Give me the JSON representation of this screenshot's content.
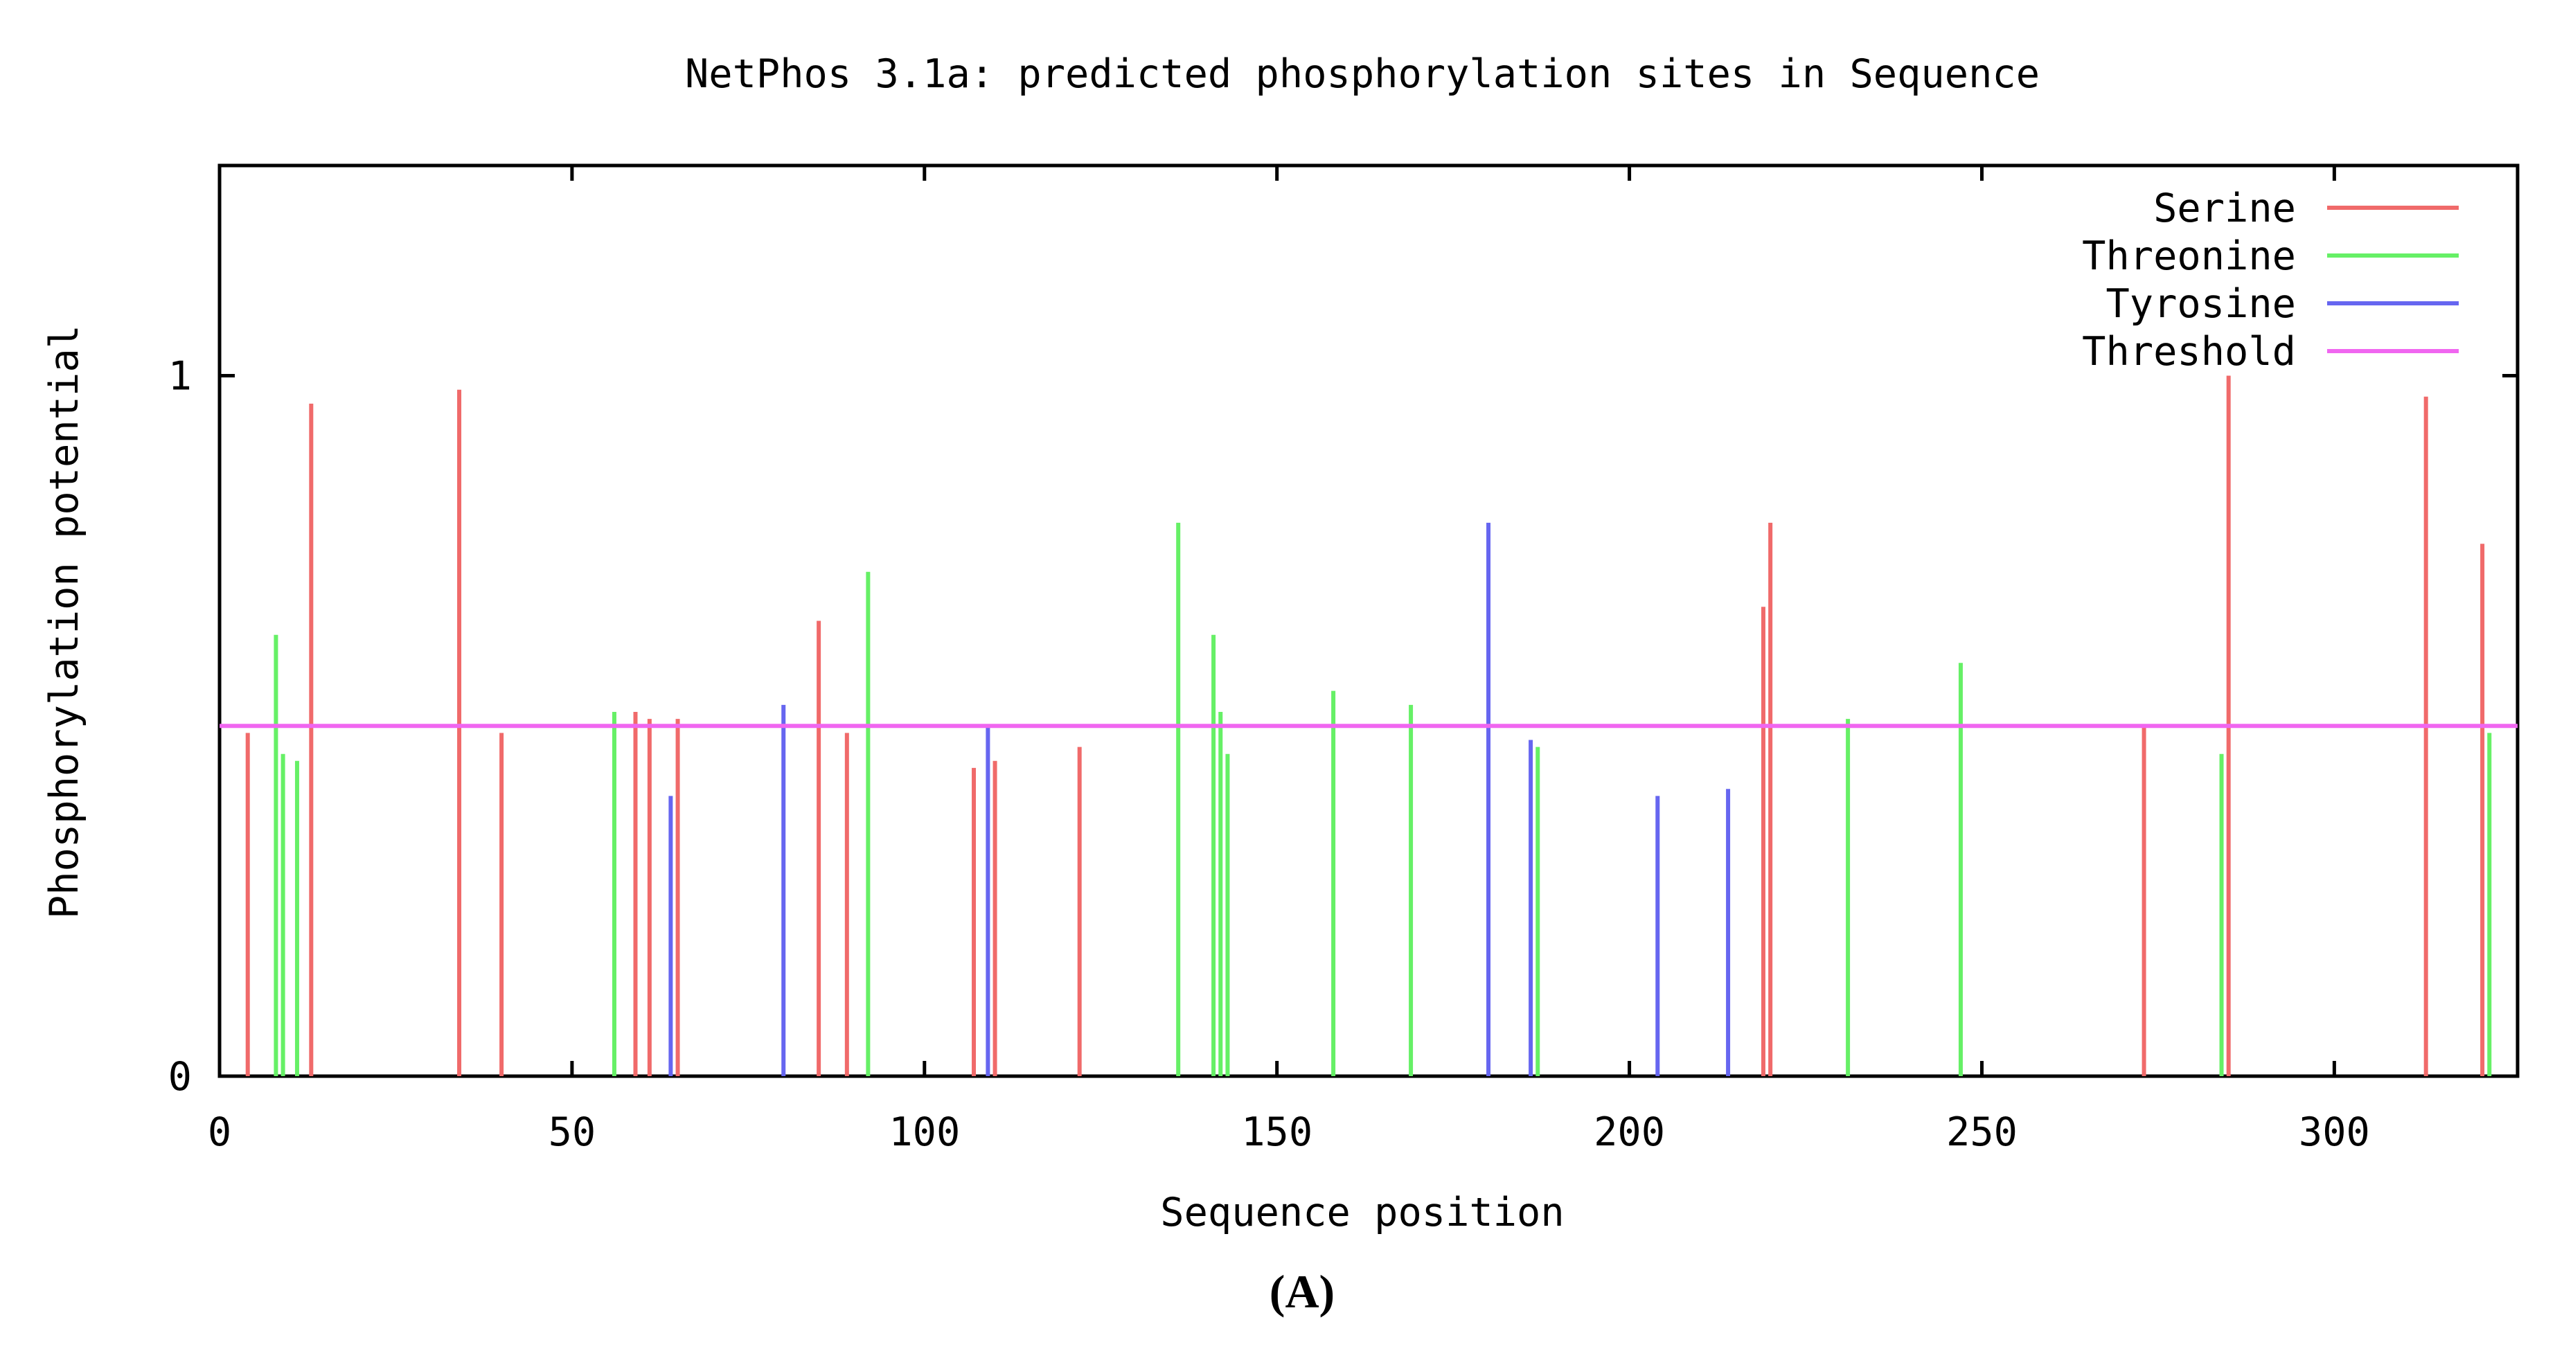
{
  "chart_data": {
    "type": "bar",
    "title": "NetPhos 3.1a: predicted phosphorylation sites in Sequence",
    "xlabel": "Sequence position",
    "ylabel": "Phosphorylation potential",
    "panel_label": "(A)",
    "xlim": [
      0,
      326
    ],
    "ylim": [
      0,
      1.3
    ],
    "x_ticks": [
      0,
      50,
      100,
      150,
      200,
      250,
      300
    ],
    "y_ticks": [
      0,
      1
    ],
    "grid": false,
    "legend_position": "top-right",
    "threshold": 0.5,
    "series": [
      {
        "name": "Serine",
        "color": "#f06a6a",
        "points": [
          {
            "x": 4,
            "y": 0.49
          },
          {
            "x": 13,
            "y": 0.96
          },
          {
            "x": 34,
            "y": 0.98
          },
          {
            "x": 40,
            "y": 0.49
          },
          {
            "x": 59,
            "y": 0.52
          },
          {
            "x": 61,
            "y": 0.51
          },
          {
            "x": 65,
            "y": 0.51
          },
          {
            "x": 85,
            "y": 0.65
          },
          {
            "x": 89,
            "y": 0.49
          },
          {
            "x": 107,
            "y": 0.44
          },
          {
            "x": 110,
            "y": 0.45
          },
          {
            "x": 122,
            "y": 0.47
          },
          {
            "x": 219,
            "y": 0.67
          },
          {
            "x": 220,
            "y": 0.79
          },
          {
            "x": 273,
            "y": 0.5
          },
          {
            "x": 285,
            "y": 1.0
          },
          {
            "x": 313,
            "y": 0.97
          },
          {
            "x": 321,
            "y": 0.76
          }
        ]
      },
      {
        "name": "Threonine",
        "color": "#66f066",
        "points": [
          {
            "x": 8,
            "y": 0.63
          },
          {
            "x": 9,
            "y": 0.46
          },
          {
            "x": 11,
            "y": 0.45
          },
          {
            "x": 56,
            "y": 0.52
          },
          {
            "x": 92,
            "y": 0.72
          },
          {
            "x": 136,
            "y": 0.79
          },
          {
            "x": 141,
            "y": 0.63
          },
          {
            "x": 142,
            "y": 0.52
          },
          {
            "x": 143,
            "y": 0.46
          },
          {
            "x": 158,
            "y": 0.55
          },
          {
            "x": 169,
            "y": 0.53
          },
          {
            "x": 187,
            "y": 0.47
          },
          {
            "x": 231,
            "y": 0.51
          },
          {
            "x": 247,
            "y": 0.59
          },
          {
            "x": 284,
            "y": 0.46
          },
          {
            "x": 322,
            "y": 0.49
          }
        ]
      },
      {
        "name": "Tyrosine",
        "color": "#6666f0",
        "points": [
          {
            "x": 64,
            "y": 0.4
          },
          {
            "x": 80,
            "y": 0.53
          },
          {
            "x": 109,
            "y": 0.5
          },
          {
            "x": 180,
            "y": 0.79
          },
          {
            "x": 186,
            "y": 0.48
          },
          {
            "x": 204,
            "y": 0.4
          },
          {
            "x": 214,
            "y": 0.41
          }
        ]
      }
    ],
    "threshold_series": {
      "name": "Threshold",
      "color": "#f066f0"
    }
  }
}
